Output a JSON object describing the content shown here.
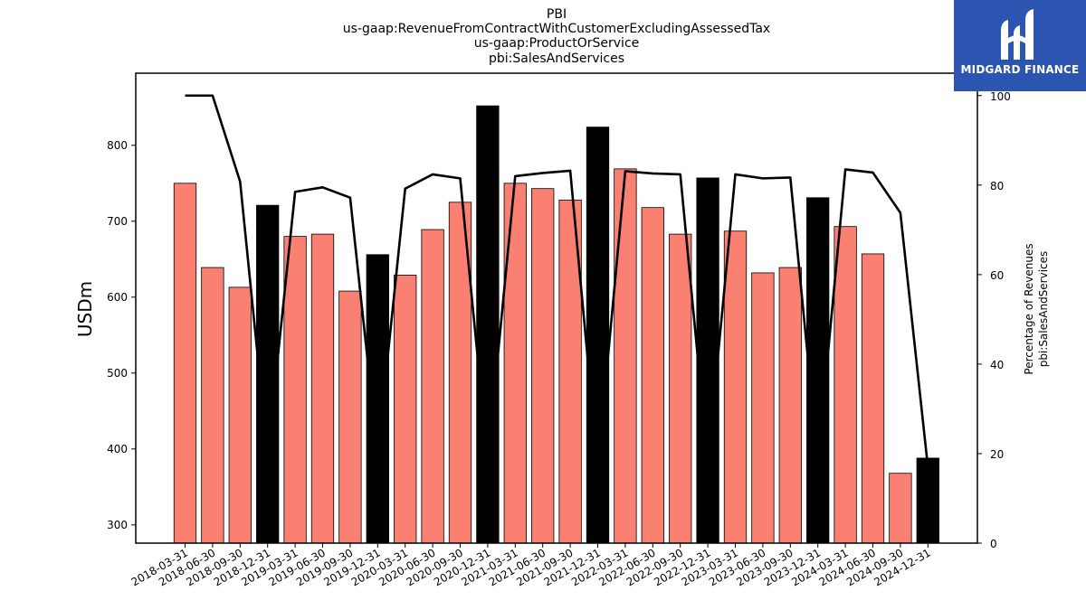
{
  "chart_data": {
    "type": "bar",
    "title_lines": [
      "PBI",
      "us-gaap:RevenueFromContractWithCustomerExcludingAssessedTax",
      "us-gaap:ProductOrService",
      "pbi:SalesAndServices"
    ],
    "ylabel": "USDm",
    "ylabel_right": [
      "Percentage of Revenues",
      "pbi:SalesAndServices"
    ],
    "ylim": [
      276,
      895
    ],
    "ylim_right": [
      0,
      105
    ],
    "yticks": [
      300,
      400,
      500,
      600,
      700,
      800
    ],
    "yticks_right": [
      0,
      20,
      40,
      60,
      80,
      100
    ],
    "categories": [
      "2018-03-31",
      "2018-06-30",
      "2018-09-30",
      "2018-12-31",
      "2019-03-31",
      "2019-06-30",
      "2019-09-30",
      "2019-12-31",
      "2020-03-31",
      "2020-06-30",
      "2020-09-30",
      "2020-12-31",
      "2021-03-31",
      "2021-06-30",
      "2021-09-30",
      "2021-12-31",
      "2022-03-31",
      "2022-06-30",
      "2022-09-30",
      "2022-12-31",
      "2023-03-31",
      "2023-06-30",
      "2023-09-30",
      "2023-12-31",
      "2024-03-31",
      "2024-06-30",
      "2024-09-30",
      "2024-12-31"
    ],
    "values": [
      750,
      639,
      613,
      721,
      680,
      683,
      608,
      656,
      629,
      689,
      725,
      852,
      750,
      743,
      728,
      824,
      769,
      718,
      683,
      757,
      687,
      632,
      639,
      731,
      693,
      657,
      368,
      388
    ],
    "percentage": [
      100,
      100,
      80.8,
      19.8,
      78.5,
      79.5,
      77.2,
      20,
      79.2,
      82.4,
      81.5,
      18.5,
      82,
      82.7,
      83.2,
      17,
      83.1,
      82.6,
      82.4,
      18,
      82.4,
      81.5,
      81.7,
      18.5,
      83.5,
      82.8,
      73.8,
      17
    ],
    "annual_indices": [
      3,
      7,
      11,
      15,
      19,
      23,
      27
    ],
    "colors": {
      "quarter_bar": "#fa8072",
      "annual_bar": "#000000",
      "line": "#000000"
    }
  },
  "logo": {
    "text": "MIDGARD FINANCE",
    "color": "#2b55b0"
  }
}
